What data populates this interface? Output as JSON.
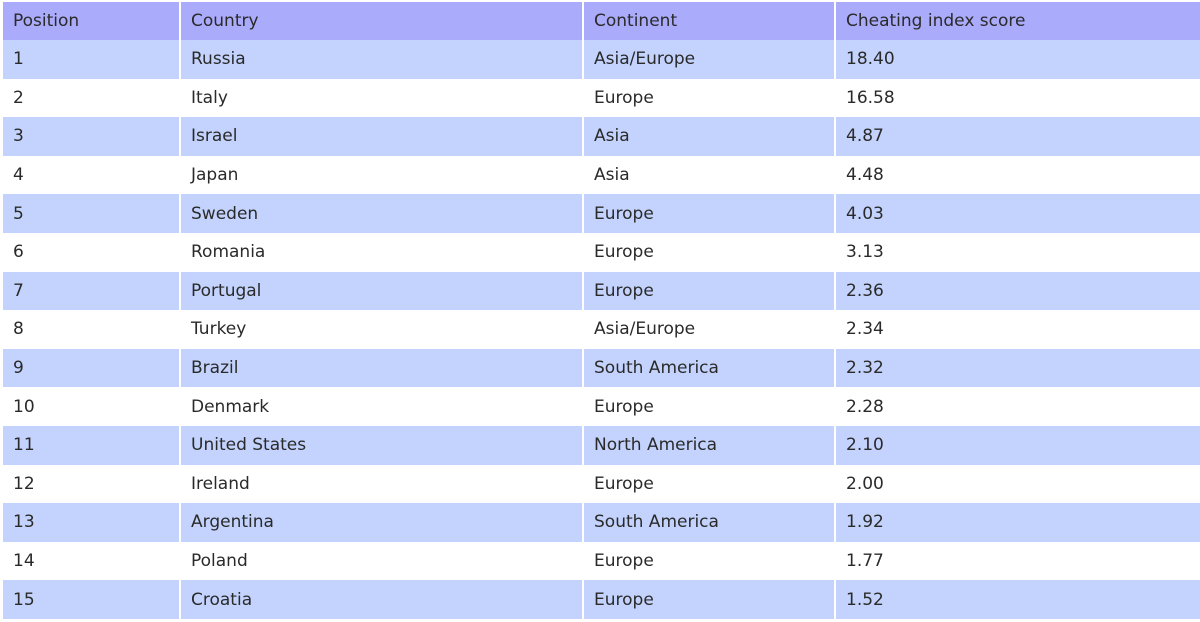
{
  "table": {
    "header": [
      "Position",
      "Country",
      "Continent",
      "Cheating index score"
    ],
    "rows": [
      [
        "1",
        "Russia",
        "Asia/Europe",
        "18.40"
      ],
      [
        "2",
        "Italy",
        "Europe",
        "16.58"
      ],
      [
        "3",
        "Israel",
        "Asia",
        "4.87"
      ],
      [
        "4",
        "Japan",
        "Asia",
        "4.48"
      ],
      [
        "5",
        "Sweden",
        "Europe",
        "4.03"
      ],
      [
        "6",
        "Romania",
        "Europe",
        "3.13"
      ],
      [
        "7",
        "Portugal",
        "Europe",
        "2.36"
      ],
      [
        "8",
        "Turkey",
        "Asia/Europe",
        "2.34"
      ],
      [
        "9",
        "Brazil",
        "South America",
        "2.32"
      ],
      [
        "10",
        "Denmark",
        "Europe",
        "2.28"
      ],
      [
        "11",
        "United States",
        "North America",
        "2.10"
      ],
      [
        "12",
        "Ireland",
        "Europe",
        "2.00"
      ],
      [
        "13",
        "Argentina",
        "South America",
        "1.92"
      ],
      [
        "14",
        "Poland",
        "Europe",
        "1.77"
      ],
      [
        "15",
        "Croatia",
        "Europe",
        "1.52"
      ]
    ]
  }
}
